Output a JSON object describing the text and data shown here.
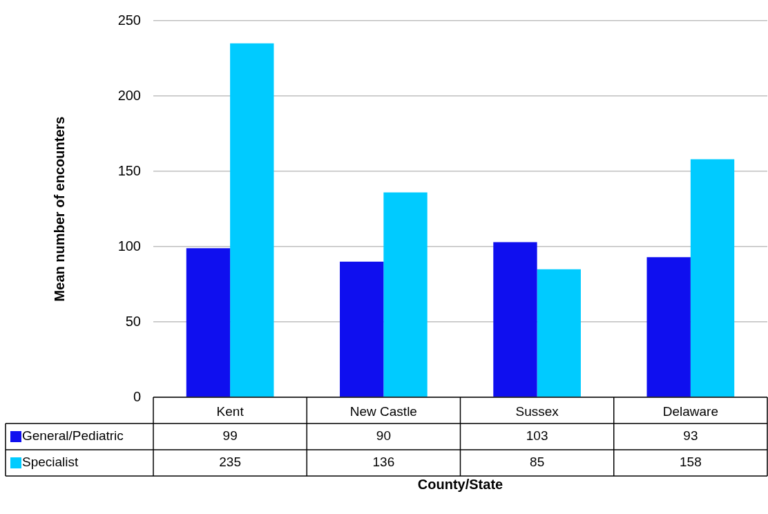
{
  "chart_data": {
    "type": "bar",
    "xlabel": "County/State",
    "ylabel": "Mean number of encounters",
    "categories": [
      "Kent",
      "New Castle",
      "Sussex",
      "Delaware"
    ],
    "series": [
      {
        "name": "General/Pediatric",
        "color": "#0f0fef",
        "values": [
          99,
          90,
          103,
          93
        ]
      },
      {
        "name": "Specialist",
        "color": "#00cbff",
        "values": [
          235,
          136,
          85,
          158
        ]
      }
    ],
    "ylim": [
      0,
      250
    ],
    "yticks": [
      0,
      50,
      100,
      150,
      200,
      250
    ],
    "grid": "y",
    "legend": "bottom",
    "data_labels": true
  }
}
